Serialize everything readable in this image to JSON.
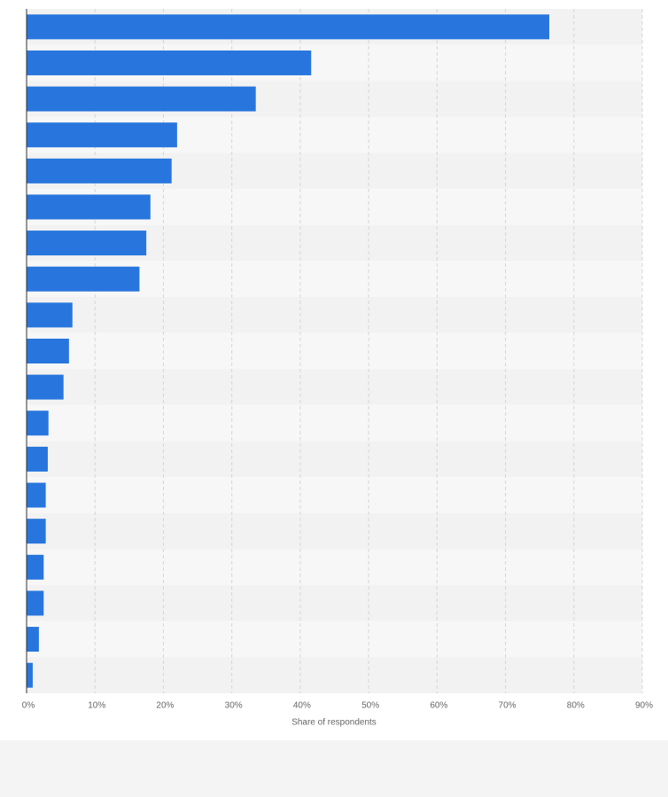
{
  "chart_data": {
    "type": "bar",
    "orientation": "horizontal",
    "x_label": "Share of respondents",
    "categories": [
      null,
      null,
      null,
      null,
      null,
      null,
      null,
      null,
      null,
      null,
      null,
      null,
      null,
      null,
      null,
      null,
      null,
      null,
      null
    ],
    "values": [
      76.4,
      41.6,
      33.5,
      22.0,
      21.2,
      18.1,
      17.5,
      16.5,
      6.7,
      6.2,
      5.4,
      3.2,
      3.1,
      2.8,
      2.8,
      2.5,
      2.5,
      1.8,
      0.9
    ],
    "color": "#2876dd",
    "xlim": [
      0,
      90
    ],
    "xticks": [
      {
        "value": 0,
        "label": "0%"
      },
      {
        "value": 10,
        "label": "10%"
      },
      {
        "value": 20,
        "label": "20%"
      },
      {
        "value": 30,
        "label": "30%"
      },
      {
        "value": 40,
        "label": "40%"
      },
      {
        "value": 50,
        "label": "50%"
      },
      {
        "value": 60,
        "label": "60%"
      },
      {
        "value": 70,
        "label": "70%"
      },
      {
        "value": 80,
        "label": "80%"
      },
      {
        "value": 90,
        "label": "90%"
      }
    ],
    "grid": true
  }
}
